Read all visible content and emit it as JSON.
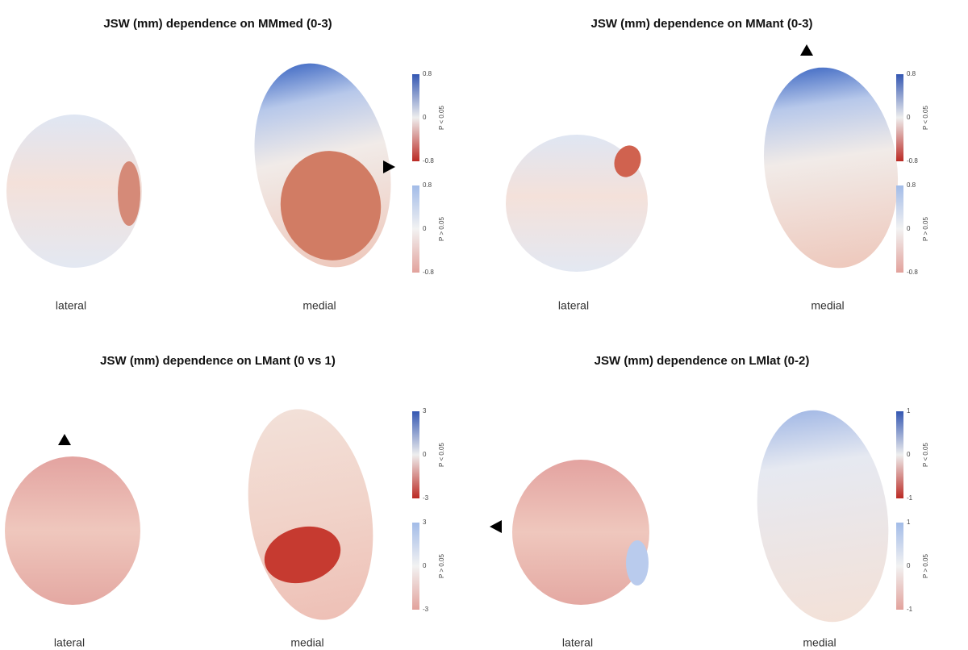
{
  "panels": [
    {
      "title": "JSW (mm) dependence on MMmed (0-3)",
      "views": [
        "lateral",
        "medial"
      ],
      "colorbars": [
        {
          "ticks": [
            "0.8",
            "0",
            "-0.8"
          ],
          "label": "P < 0.05"
        },
        {
          "ticks": [
            "0.8",
            "0",
            "-0.8"
          ],
          "label": "P > 0.05"
        }
      ]
    },
    {
      "title": "JSW (mm) dependence on MMant (0-3)",
      "views": [
        "lateral",
        "medial"
      ],
      "colorbars": [
        {
          "ticks": [
            "0.8",
            "0",
            "-0.8"
          ],
          "label": "P < 0.05"
        },
        {
          "ticks": [
            "0.8",
            "0",
            "-0.8"
          ],
          "label": "P > 0.05"
        }
      ]
    },
    {
      "title": "JSW (mm) dependence on LMant (0 vs 1)",
      "views": [
        "lateral",
        "medial"
      ],
      "colorbars": [
        {
          "ticks": [
            "3",
            "0",
            "-3"
          ],
          "label": "P < 0.05"
        },
        {
          "ticks": [
            "3",
            "0",
            "-3"
          ],
          "label": "P > 0.05"
        }
      ]
    },
    {
      "title": "JSW (mm) dependence on LMlat (0-2)",
      "views": [
        "lateral",
        "medial"
      ],
      "colorbars": [
        {
          "ticks": [
            "1",
            "0",
            "-1"
          ],
          "label": "P < 0.05"
        },
        {
          "ticks": [
            "1",
            "0",
            "-1"
          ],
          "label": "P > 0.05"
        }
      ]
    }
  ]
}
